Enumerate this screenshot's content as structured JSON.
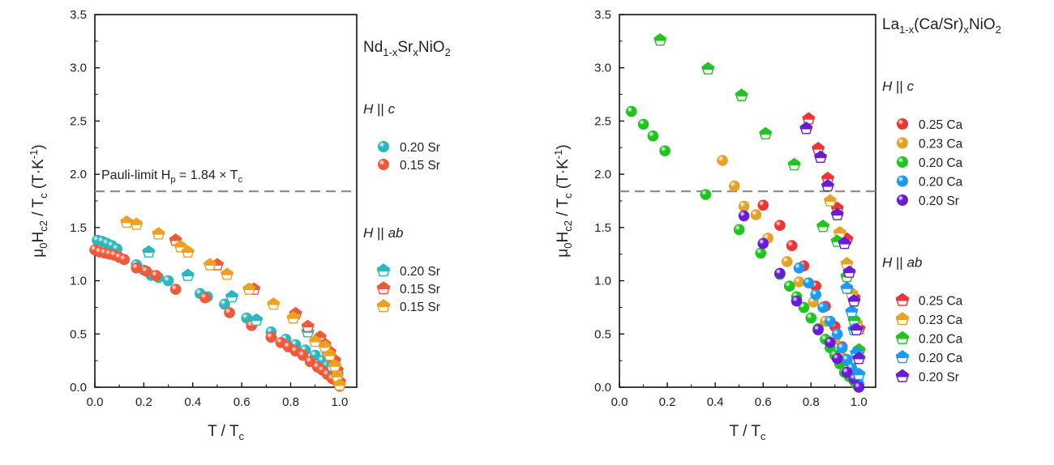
{
  "chart_data": [
    {
      "type": "scatter",
      "xlabel": "T / T",
      "xlabel_sub": "c",
      "ylabel": "μ0Hc2 / Tc  (T·K-1)",
      "xlim": [
        0,
        1.07
      ],
      "ylim": [
        0,
        3.5
      ],
      "xticks": [
        "0.0",
        "0.2",
        "0.4",
        "0.6",
        "0.8",
        "1.0"
      ],
      "yticks": [
        "0.0",
        "0.5",
        "1.0",
        "1.5",
        "2.0",
        "2.5",
        "3.0",
        "3.5"
      ],
      "title_parts": [
        "Nd",
        "1-x",
        "Sr",
        "x",
        "NiO",
        "2"
      ],
      "pauli_limit": {
        "value": 1.84,
        "label": "Pauli-limit H",
        "label_sub": "p",
        "label_tail": " = 1.84 × T",
        "label_tail_sub": "c"
      },
      "legend_groups": [
        {
          "header": "H || c",
          "entries": [
            {
              "label": "0.20 Sr",
              "color": "#2BB7BD",
              "marker": "sphere"
            },
            {
              "label": "0.15 Sr",
              "color": "#F0583A",
              "marker": "sphere"
            }
          ]
        },
        {
          "header": "H || ab",
          "entries": [
            {
              "label": "0.20 Sr",
              "color": "#2BB7BD",
              "marker": "pentagon"
            },
            {
              "label": "0.15 Sr",
              "color": "#F0583A",
              "marker": "pentagon"
            },
            {
              "label": "0.15 Sr",
              "color": "#F0A020",
              "marker": "pentagon"
            }
          ]
        }
      ],
      "series": [
        {
          "name": "0.20 Sr",
          "group": "H || c",
          "color": "#2BB7BD",
          "marker": "sphere",
          "x": [
            0.01,
            0.03,
            0.05,
            0.07,
            0.09,
            0.12,
            0.17,
            0.2,
            0.23,
            0.26,
            0.3,
            0.43,
            0.46,
            0.53,
            0.62,
            0.72,
            0.78,
            0.82,
            0.86,
            0.9,
            0.93,
            0.95,
            0.97,
            0.99,
            1.0
          ],
          "y": [
            1.38,
            1.37,
            1.35,
            1.33,
            1.3,
            1.2,
            1.15,
            1.1,
            1.05,
            1.03,
            1.0,
            0.88,
            0.85,
            0.78,
            0.65,
            0.52,
            0.45,
            0.4,
            0.35,
            0.3,
            0.25,
            0.2,
            0.15,
            0.08,
            0.03
          ]
        },
        {
          "name": "0.15 Sr",
          "group": "H || c",
          "color": "#F0583A",
          "marker": "sphere",
          "x": [
            0.0,
            0.02,
            0.04,
            0.06,
            0.08,
            0.1,
            0.12,
            0.17,
            0.21,
            0.25,
            0.33,
            0.45,
            0.55,
            0.64,
            0.72,
            0.76,
            0.79,
            0.82,
            0.85,
            0.88,
            0.91,
            0.93,
            0.95,
            0.97,
            0.99,
            1.0
          ],
          "y": [
            1.29,
            1.27,
            1.26,
            1.25,
            1.24,
            1.22,
            1.2,
            1.12,
            1.09,
            1.05,
            0.92,
            0.84,
            0.7,
            0.58,
            0.47,
            0.42,
            0.38,
            0.34,
            0.3,
            0.24,
            0.19,
            0.16,
            0.12,
            0.08,
            0.05,
            0.01
          ]
        },
        {
          "name": "0.20 Sr",
          "group": "H || ab",
          "color": "#2BB7BD",
          "marker": "pentagon",
          "x": [
            0.22,
            0.38,
            0.56,
            0.66,
            0.87,
            0.95,
            0.97,
            0.99
          ],
          "y": [
            1.27,
            1.05,
            0.85,
            0.63,
            0.52,
            0.33,
            0.2,
            0.12
          ]
        },
        {
          "name": "0.15 Sr",
          "group": "H || ab",
          "color": "#F0583A",
          "marker": "pentagon",
          "x": [
            0.33,
            0.5,
            0.65,
            0.82,
            0.87,
            0.92,
            0.94,
            0.96,
            0.98,
            0.99,
            1.0
          ],
          "y": [
            1.38,
            1.15,
            0.92,
            0.69,
            0.57,
            0.47,
            0.4,
            0.33,
            0.25,
            0.16,
            0.05
          ]
        },
        {
          "name": "0.15 Sr",
          "group": "H || ab",
          "color": "#F0A020",
          "marker": "pentagon",
          "x": [
            0.13,
            0.17,
            0.26,
            0.35,
            0.38,
            0.47,
            0.54,
            0.63,
            0.73,
            0.81,
            0.9,
            0.94,
            0.96,
            0.98,
            0.99,
            1.0
          ],
          "y": [
            1.55,
            1.53,
            1.44,
            1.32,
            1.27,
            1.15,
            1.06,
            0.92,
            0.78,
            0.65,
            0.43,
            0.38,
            0.3,
            0.2,
            0.1,
            0.02
          ]
        }
      ]
    },
    {
      "type": "scatter",
      "xlabel": "T / T",
      "xlabel_sub": "c",
      "ylabel": "μ0Hc2 / Tc  (T·K-1)",
      "xlim": [
        0,
        1.07
      ],
      "ylim": [
        0,
        3.5
      ],
      "xticks": [
        "0.0",
        "0.2",
        "0.4",
        "0.6",
        "0.8",
        "1.0"
      ],
      "yticks": [
        "0.0",
        "0.5",
        "1.0",
        "1.5",
        "2.0",
        "2.5",
        "3.0",
        "3.5"
      ],
      "title_parts": [
        "La",
        "1-x",
        "(Ca/Sr)",
        "x",
        "NiO",
        "2"
      ],
      "pauli_limit": {
        "value": 1.84
      },
      "legend_groups": [
        {
          "header": "H || c",
          "entries": [
            {
              "label": "0.25 Ca",
              "color": "#EE3535",
              "marker": "sphere"
            },
            {
              "label": "0.23 Ca",
              "color": "#E5A325",
              "marker": "sphere"
            },
            {
              "label": "0.20 Ca",
              "color": "#1FC41F",
              "marker": "sphere"
            },
            {
              "label": "0.20 Ca",
              "color": "#1A9BEF",
              "marker": "sphere"
            },
            {
              "label": "0.20 Sr",
              "color": "#6A1BD6",
              "marker": "sphere"
            }
          ]
        },
        {
          "header": "H || ab",
          "entries": [
            {
              "label": "0.25 Ca",
              "color": "#EE3535",
              "marker": "pentagon"
            },
            {
              "label": "0.23 Ca",
              "color": "#E5A325",
              "marker": "pentagon"
            },
            {
              "label": "0.20 Ca",
              "color": "#1FC41F",
              "marker": "pentagon"
            },
            {
              "label": "0.20 Ca",
              "color": "#1A9BEF",
              "marker": "pentagon"
            },
            {
              "label": "0.20 Sr",
              "color": "#6A1BD6",
              "marker": "pentagon"
            }
          ]
        }
      ],
      "series": [
        {
          "name": "0.25 Ca",
          "group": "H || c",
          "color": "#EE3535",
          "marker": "sphere",
          "x": [
            0.6,
            0.67,
            0.72,
            0.77,
            0.82,
            0.86,
            0.9,
            0.93,
            0.95,
            0.97,
            0.99,
            1.0
          ],
          "y": [
            1.71,
            1.52,
            1.33,
            1.14,
            0.95,
            0.76,
            0.57,
            0.38,
            0.25,
            0.15,
            0.06,
            0.02
          ]
        },
        {
          "name": "0.23 Ca",
          "group": "H || c",
          "color": "#E5A325",
          "marker": "sphere",
          "x": [
            0.43,
            0.48,
            0.52,
            0.57,
            0.62,
            0.7,
            0.75,
            0.81,
            0.86,
            0.9,
            0.93,
            0.96,
            0.98,
            1.0
          ],
          "y": [
            2.13,
            1.89,
            1.7,
            1.62,
            1.4,
            1.18,
            0.99,
            0.8,
            0.62,
            0.45,
            0.28,
            0.15,
            0.08,
            0.02
          ]
        },
        {
          "name": "0.20 Ca",
          "group": "H || c",
          "color": "#1FC41F",
          "marker": "sphere",
          "x": [
            0.05,
            0.1,
            0.14,
            0.19,
            0.36,
            0.5,
            0.59,
            0.67,
            0.71,
            0.74,
            0.77,
            0.8,
            0.83,
            0.86,
            0.88,
            0.9,
            0.92,
            0.94,
            0.96,
            0.98,
            0.99,
            1.0
          ],
          "y": [
            2.59,
            2.47,
            2.36,
            2.22,
            1.81,
            1.48,
            1.26,
            1.06,
            0.95,
            0.85,
            0.75,
            0.65,
            0.55,
            0.45,
            0.37,
            0.3,
            0.22,
            0.14,
            0.1,
            0.06,
            0.03,
            0.01
          ]
        },
        {
          "name": "0.20 Ca",
          "group": "H || c",
          "color": "#1A9BEF",
          "marker": "sphere",
          "x": [
            0.75,
            0.79,
            0.82,
            0.85,
            0.88,
            0.91,
            0.93,
            0.95,
            0.97,
            0.99,
            1.0
          ],
          "y": [
            1.12,
            0.98,
            0.87,
            0.75,
            0.62,
            0.5,
            0.37,
            0.26,
            0.18,
            0.1,
            0.03
          ]
        },
        {
          "name": "0.20 Sr",
          "group": "H || c",
          "color": "#6A1BD6",
          "marker": "sphere",
          "x": [
            0.52,
            0.6,
            0.67,
            0.74,
            0.83,
            0.88,
            0.91,
            0.95,
            0.98,
            1.0
          ],
          "y": [
            1.61,
            1.35,
            1.07,
            0.81,
            0.54,
            0.42,
            0.27,
            0.14,
            0.08,
            0.0
          ]
        },
        {
          "name": "0.25 Ca",
          "group": "H || ab",
          "color": "#EE3535",
          "marker": "pentagon",
          "x": [
            0.79,
            0.83,
            0.87,
            0.91,
            0.95,
            0.98,
            1.0
          ],
          "y": [
            2.52,
            2.24,
            1.96,
            1.68,
            1.39,
            0.84,
            0.55
          ]
        },
        {
          "name": "0.23 Ca",
          "group": "H || ab",
          "color": "#E5A325",
          "marker": "pentagon",
          "x": [
            0.88,
            0.92,
            0.95,
            0.97,
            0.99,
            1.0
          ],
          "y": [
            1.75,
            1.45,
            1.16,
            0.88,
            0.6,
            0.33
          ]
        },
        {
          "name": "0.20 Ca",
          "group": "H || ab",
          "color": "#1FC41F",
          "marker": "pentagon",
          "x": [
            0.17,
            0.37,
            0.51,
            0.61,
            0.73,
            0.85,
            0.91,
            0.95,
            0.98,
            1.0
          ],
          "y": [
            3.26,
            2.99,
            2.74,
            2.38,
            2.09,
            1.51,
            1.37,
            1.04,
            0.63,
            0.35
          ]
        },
        {
          "name": "0.20 Ca",
          "group": "H || ab",
          "color": "#1A9BEF",
          "marker": "pentagon",
          "x": [
            0.95,
            0.97,
            0.98,
            0.99,
            1.0
          ],
          "y": [
            0.93,
            0.71,
            0.54,
            0.32,
            0.12
          ]
        },
        {
          "name": "0.20 Sr",
          "group": "H || ab",
          "color": "#6A1BD6",
          "marker": "pentagon",
          "x": [
            0.78,
            0.84,
            0.87,
            0.91,
            0.94,
            0.96,
            0.98,
            0.99,
            1.0
          ],
          "y": [
            2.43,
            2.16,
            1.89,
            1.62,
            1.35,
            1.08,
            0.81,
            0.54,
            0.27
          ]
        }
      ]
    }
  ]
}
